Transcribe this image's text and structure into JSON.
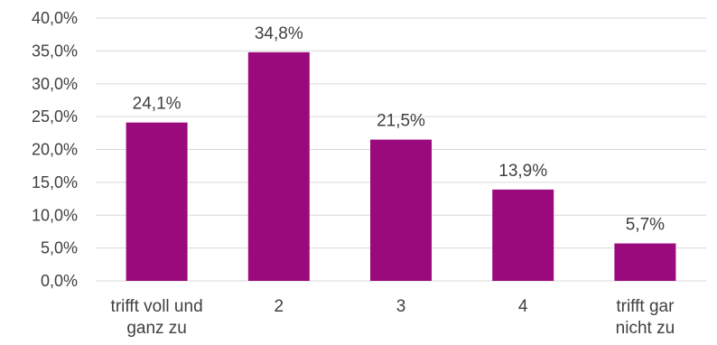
{
  "chart_data": {
    "type": "bar",
    "categories": [
      [
        "trifft voll und",
        "ganz zu"
      ],
      [
        "2"
      ],
      [
        "3"
      ],
      [
        "4"
      ],
      [
        "trifft gar",
        "nicht zu"
      ]
    ],
    "values": [
      24.1,
      34.8,
      21.5,
      13.9,
      5.7
    ],
    "data_labels": [
      "24,1%",
      "34,8%",
      "21,5%",
      "13,9%",
      "5,7%"
    ],
    "y_ticks": [
      0,
      5,
      10,
      15,
      20,
      25,
      30,
      35,
      40
    ],
    "y_tick_labels": [
      "0,0%",
      "5,0%",
      "10,0%",
      "15,0%",
      "20,0%",
      "25,0%",
      "30,0%",
      "35,0%",
      "40,0%"
    ],
    "ylim": [
      0,
      40
    ],
    "grid": true,
    "legend": "none",
    "title": "",
    "xlabel": "",
    "ylabel": "",
    "bar_color": "#9B0A7D",
    "grid_color": "#D9D9D9",
    "text_color": "#404040"
  }
}
